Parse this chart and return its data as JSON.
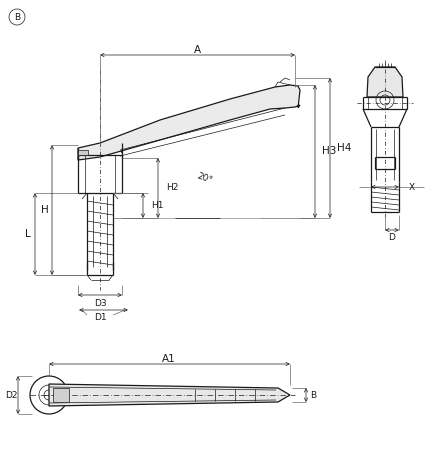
{
  "bg_color": "#ffffff",
  "line_color": "#1a1a1a",
  "thin_lw": 0.5,
  "med_lw": 0.9,
  "thick_lw": 1.3,
  "fs": 6.5,
  "fs_large": 7.5,
  "label_A": "A",
  "label_A1": "A1",
  "label_B": "B",
  "label_H": "H",
  "label_H1": "H1",
  "label_H2": "H2",
  "label_H3": "H3",
  "label_H4": "H4",
  "label_L": "L",
  "label_D1": "D1",
  "label_D2": "D2",
  "label_D3": "D3",
  "label_D": "D",
  "label_X": "X",
  "label_angle": "20°",
  "circle_B": "B"
}
